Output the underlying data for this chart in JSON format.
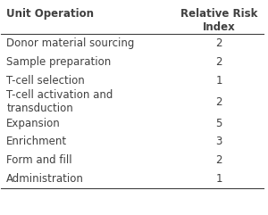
{
  "col1_header": "Unit Operation",
  "col2_header": "Relative Risk\nIndex",
  "rows": [
    [
      "Donor material sourcing",
      "2"
    ],
    [
      "Sample preparation",
      "2"
    ],
    [
      "T-cell selection",
      "1"
    ],
    [
      "T-cell activation and\ntransduction",
      "2"
    ],
    [
      "Expansion",
      "5"
    ],
    [
      "Enrichment",
      "3"
    ],
    [
      "Form and fill",
      "2"
    ],
    [
      "Administration",
      "1"
    ]
  ],
  "background_color": "#ffffff",
  "text_color": "#404040",
  "header_color": "#404040",
  "line_color": "#404040",
  "font_size": 8.5,
  "header_font_size": 8.5
}
